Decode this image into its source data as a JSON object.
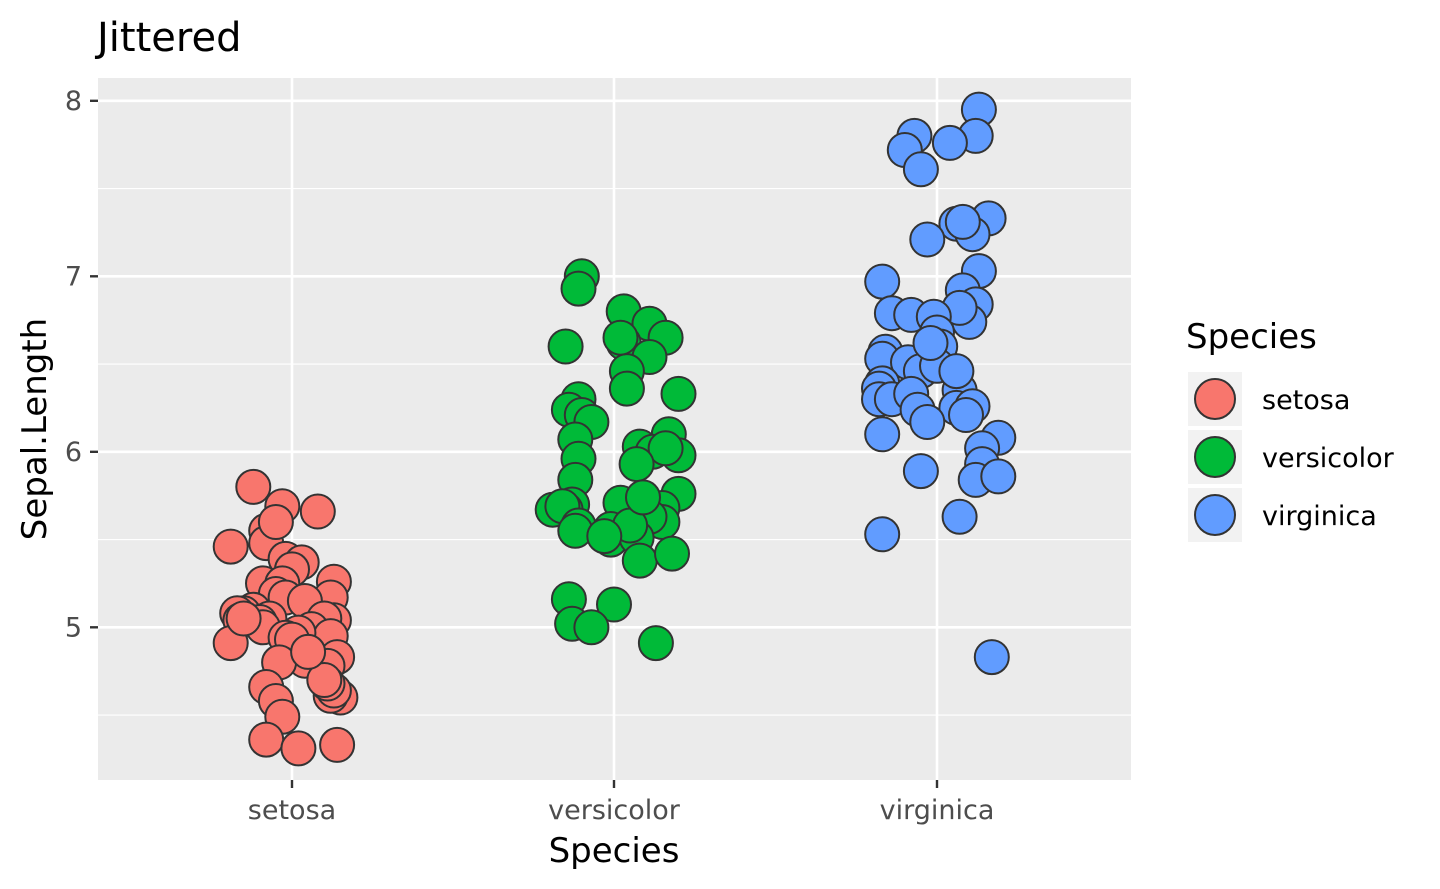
{
  "chart_data": {
    "type": "scatter",
    "title": "Jittered",
    "xlabel": "Species",
    "ylabel": "Sepal.Length",
    "categories": [
      "setosa",
      "versicolor",
      "virginica"
    ],
    "y_ticks": [
      "5",
      "6",
      "7",
      "8"
    ],
    "ylim": [
      4.13,
      8.13
    ],
    "grid": true,
    "background": "#ebebeb",
    "legend": {
      "title": "Species",
      "placement": "right",
      "entries": [
        {
          "label": "setosa",
          "color": "#f8766d"
        },
        {
          "label": "versicolor",
          "color": "#00ba38"
        },
        {
          "label": "virginica",
          "color": "#619cff"
        }
      ]
    },
    "series": [
      {
        "category": "setosa",
        "color": "#f8766d",
        "points": [
          [
            -0.19,
            5.46
          ],
          [
            -0.12,
            5.8
          ],
          [
            -0.08,
            5.55
          ],
          [
            0.08,
            5.66
          ],
          [
            -0.03,
            5.69
          ],
          [
            -0.08,
            5.48
          ],
          [
            -0.09,
            5.25
          ],
          [
            -0.05,
            5.6
          ],
          [
            -0.02,
            5.39
          ],
          [
            0.03,
            5.37
          ],
          [
            0.13,
            5.26
          ],
          [
            0.08,
            5.12
          ],
          [
            0.12,
            5.17
          ],
          [
            0.0,
            5.33
          ],
          [
            -0.03,
            5.25
          ],
          [
            -0.05,
            5.19
          ],
          [
            -0.02,
            5.17
          ],
          [
            0.04,
            5.15
          ],
          [
            -0.12,
            5.1
          ],
          [
            -0.15,
            5.08
          ],
          [
            -0.17,
            5.08
          ],
          [
            -0.16,
            5.04
          ],
          [
            -0.07,
            5.05
          ],
          [
            -0.1,
            5.03
          ],
          [
            -0.09,
            5.0
          ],
          [
            0.13,
            5.04
          ],
          [
            0.1,
            5.05
          ],
          [
            0.06,
            4.99
          ],
          [
            0.12,
            4.95
          ],
          [
            0.02,
            4.97
          ],
          [
            -0.02,
            4.94
          ],
          [
            0.0,
            4.93
          ],
          [
            -0.19,
            4.91
          ],
          [
            0.14,
            4.83
          ],
          [
            0.11,
            4.78
          ],
          [
            0.04,
            4.81
          ],
          [
            -0.04,
            4.8
          ],
          [
            -0.08,
            4.66
          ],
          [
            -0.05,
            4.58
          ],
          [
            0.15,
            4.6
          ],
          [
            0.12,
            4.61
          ],
          [
            0.13,
            4.64
          ],
          [
            -0.03,
            4.49
          ],
          [
            -0.08,
            4.36
          ],
          [
            0.02,
            4.31
          ],
          [
            0.14,
            4.33
          ],
          [
            0.11,
            4.68
          ],
          [
            0.1,
            4.7
          ],
          [
            0.05,
            4.86
          ],
          [
            -0.15,
            5.05
          ]
        ]
      },
      {
        "category": "versicolor",
        "color": "#00ba38",
        "points": [
          [
            -0.1,
            7.0
          ],
          [
            -0.11,
            6.93
          ],
          [
            -0.15,
            6.6
          ],
          [
            0.03,
            6.8
          ],
          [
            0.11,
            6.73
          ],
          [
            0.16,
            6.65
          ],
          [
            0.03,
            6.62
          ],
          [
            0.11,
            6.54
          ],
          [
            0.04,
            6.46
          ],
          [
            0.04,
            6.36
          ],
          [
            0.2,
            6.33
          ],
          [
            -0.11,
            6.3
          ],
          [
            -0.14,
            6.24
          ],
          [
            -0.1,
            6.21
          ],
          [
            -0.07,
            6.17
          ],
          [
            -0.12,
            6.07
          ],
          [
            0.17,
            6.1
          ],
          [
            0.08,
            6.03
          ],
          [
            0.12,
            6.0
          ],
          [
            0.2,
            5.98
          ],
          [
            0.16,
            6.02
          ],
          [
            0.07,
            5.93
          ],
          [
            -0.11,
            5.96
          ],
          [
            -0.12,
            5.84
          ],
          [
            0.2,
            5.76
          ],
          [
            -0.13,
            5.7
          ],
          [
            -0.15,
            5.67
          ],
          [
            -0.19,
            5.67
          ],
          [
            -0.16,
            5.69
          ],
          [
            0.02,
            5.71
          ],
          [
            0.11,
            5.68
          ],
          [
            0.15,
            5.68
          ],
          [
            -0.11,
            5.58
          ],
          [
            -0.12,
            5.55
          ],
          [
            -0.01,
            5.56
          ],
          [
            0.15,
            5.6
          ],
          [
            0.11,
            5.63
          ],
          [
            -0.01,
            5.5
          ],
          [
            0.07,
            5.51
          ],
          [
            0.08,
            5.38
          ],
          [
            0.18,
            5.42
          ],
          [
            -0.14,
            5.16
          ],
          [
            0.0,
            5.13
          ],
          [
            -0.13,
            5.02
          ],
          [
            -0.07,
            5.0
          ],
          [
            0.13,
            4.91
          ],
          [
            0.05,
            5.58
          ],
          [
            0.09,
            5.74
          ],
          [
            -0.03,
            5.52
          ],
          [
            0.02,
            6.65
          ]
        ]
      },
      {
        "category": "virginica",
        "color": "#619cff",
        "points": [
          [
            0.13,
            7.95
          ],
          [
            -0.07,
            7.8
          ],
          [
            0.12,
            7.8
          ],
          [
            0.04,
            7.76
          ],
          [
            -0.1,
            7.72
          ],
          [
            -0.05,
            7.61
          ],
          [
            0.16,
            7.33
          ],
          [
            0.06,
            7.3
          ],
          [
            0.11,
            7.24
          ],
          [
            0.08,
            7.31
          ],
          [
            -0.03,
            7.21
          ],
          [
            0.13,
            7.03
          ],
          [
            -0.17,
            6.97
          ],
          [
            0.08,
            6.92
          ],
          [
            0.12,
            6.84
          ],
          [
            -0.14,
            6.79
          ],
          [
            -0.08,
            6.78
          ],
          [
            0.1,
            6.74
          ],
          [
            0.07,
            6.82
          ],
          [
            -0.01,
            6.77
          ],
          [
            0.0,
            6.68
          ],
          [
            -0.16,
            6.57
          ],
          [
            -0.17,
            6.53
          ],
          [
            0.01,
            6.6
          ],
          [
            -0.09,
            6.51
          ],
          [
            -0.05,
            6.46
          ],
          [
            0.0,
            6.49
          ],
          [
            0.07,
            6.35
          ],
          [
            -0.17,
            6.39
          ],
          [
            -0.18,
            6.36
          ],
          [
            -0.18,
            6.3
          ],
          [
            -0.14,
            6.3
          ],
          [
            -0.08,
            6.33
          ],
          [
            -0.06,
            6.24
          ],
          [
            0.06,
            6.25
          ],
          [
            0.11,
            6.26
          ],
          [
            0.09,
            6.21
          ],
          [
            -0.03,
            6.17
          ],
          [
            -0.17,
            6.1
          ],
          [
            0.19,
            6.08
          ],
          [
            0.14,
            6.02
          ],
          [
            0.14,
            5.93
          ],
          [
            0.12,
            5.84
          ],
          [
            0.19,
            5.86
          ],
          [
            -0.05,
            5.89
          ],
          [
            0.07,
            5.63
          ],
          [
            -0.17,
            5.53
          ],
          [
            0.17,
            4.83
          ],
          [
            0.06,
            6.46
          ],
          [
            -0.02,
            6.62
          ]
        ]
      }
    ]
  }
}
